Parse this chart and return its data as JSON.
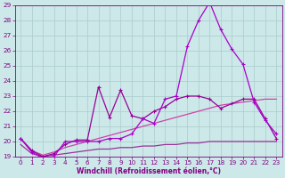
{
  "xlabel": "Windchill (Refroidissement éolien,°C)",
  "xlim": [
    -0.5,
    23.5
  ],
  "ylim": [
    19,
    29
  ],
  "yticks": [
    19,
    20,
    21,
    22,
    23,
    24,
    25,
    26,
    27,
    28,
    29
  ],
  "xticks": [
    0,
    1,
    2,
    3,
    4,
    5,
    6,
    7,
    8,
    9,
    10,
    11,
    12,
    13,
    14,
    15,
    16,
    17,
    18,
    19,
    20,
    21,
    22,
    23
  ],
  "bg_color": "#cce8e8",
  "grid_color": "#aacccc",
  "line_color": "#800080",
  "series": [
    {
      "x": [
        0,
        1,
        2,
        3,
        4,
        5,
        6,
        7,
        8,
        9,
        10,
        11,
        12,
        13,
        14,
        15,
        16,
        17,
        18,
        19,
        20,
        21,
        22,
        23
      ],
      "y": [
        20.2,
        19.4,
        19.0,
        19.2,
        19.8,
        20.1,
        20.1,
        23.6,
        21.6,
        23.4,
        21.7,
        21.5,
        22.0,
        22.3,
        22.8,
        23.0,
        23.0,
        22.8,
        22.2,
        22.5,
        22.8,
        22.8,
        21.5,
        20.2
      ],
      "color": "#990099",
      "marker": true,
      "linewidth": 0.9
    },
    {
      "x": [
        0,
        1,
        2,
        3,
        4,
        5,
        6,
        7,
        8,
        9,
        10,
        11,
        12,
        13,
        14,
        15,
        16,
        17,
        18,
        19,
        20,
        21,
        22,
        23
      ],
      "y": [
        20.2,
        19.3,
        18.9,
        19.0,
        20.0,
        20.0,
        20.0,
        20.0,
        20.2,
        20.2,
        20.5,
        21.5,
        21.2,
        22.8,
        23.0,
        26.3,
        28.0,
        29.2,
        27.4,
        26.1,
        25.1,
        22.6,
        21.4,
        20.5
      ],
      "color": "#aa00cc",
      "marker": true,
      "linewidth": 0.9
    },
    {
      "x": [
        0,
        1,
        2,
        3,
        4,
        5,
        6,
        7,
        8,
        9,
        10,
        11,
        12,
        13,
        14,
        15,
        16,
        17,
        18,
        19,
        20,
        21,
        22,
        23
      ],
      "y": [
        20.2,
        19.4,
        19.1,
        19.3,
        19.6,
        19.8,
        20.0,
        20.2,
        20.4,
        20.6,
        20.8,
        21.0,
        21.2,
        21.4,
        21.6,
        21.8,
        22.0,
        22.2,
        22.4,
        22.5,
        22.6,
        22.7,
        22.8,
        22.8
      ],
      "color": "#cc44aa",
      "marker": false,
      "linewidth": 0.9
    },
    {
      "x": [
        0,
        1,
        2,
        3,
        4,
        5,
        6,
        7,
        8,
        9,
        10,
        11,
        12,
        13,
        14,
        15,
        16,
        17,
        18,
        19,
        20,
        21,
        22,
        23
      ],
      "y": [
        19.8,
        19.2,
        19.0,
        19.1,
        19.2,
        19.3,
        19.4,
        19.5,
        19.5,
        19.6,
        19.6,
        19.7,
        19.7,
        19.8,
        19.8,
        19.9,
        19.9,
        20.0,
        20.0,
        20.0,
        20.0,
        20.0,
        20.0,
        20.0
      ],
      "color": "#993399",
      "marker": false,
      "linewidth": 0.9
    }
  ]
}
